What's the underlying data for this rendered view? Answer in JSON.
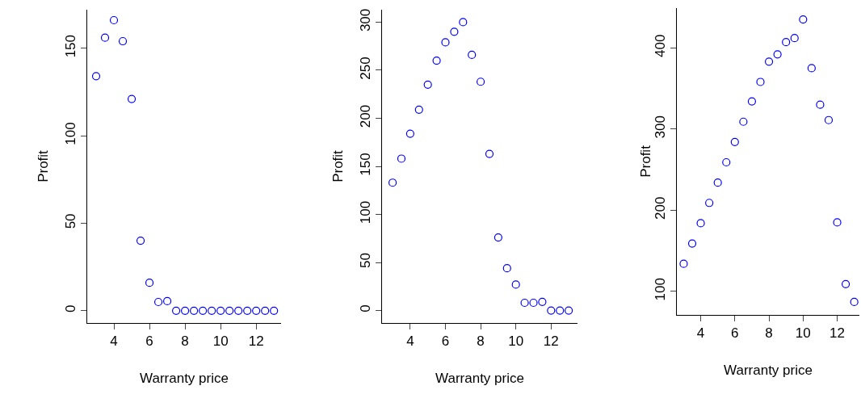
{
  "chart_data": [
    {
      "type": "scatter",
      "xlabel": "Warranty price",
      "ylabel": "Profit",
      "x": [
        3,
        3.5,
        4,
        4.5,
        5,
        5.5,
        6,
        6.5,
        7,
        7.5,
        8,
        8.5,
        9,
        9.5,
        10,
        10.5,
        11,
        11.5,
        12,
        12.5,
        13
      ],
      "values": [
        134,
        156,
        166,
        154,
        121,
        40,
        16,
        5,
        5.5,
        0,
        0,
        0,
        0,
        0,
        0,
        0,
        0,
        0,
        0,
        0,
        0
      ],
      "color": "#0000ff",
      "marker": "circle",
      "xlim": [
        2.5,
        13.4
      ],
      "ylim": [
        -7,
        172
      ],
      "xticks": [
        4,
        6,
        8,
        10,
        12
      ],
      "yticks": [
        0,
        50,
        100,
        150
      ],
      "grid": false
    },
    {
      "type": "scatter",
      "xlabel": "Warranty price",
      "ylabel": "Profit",
      "x": [
        3,
        3.5,
        4,
        4.5,
        5,
        5.5,
        6,
        6.5,
        7,
        7.5,
        8,
        8.5,
        9,
        9.5,
        10,
        10.5,
        11,
        11.5,
        12,
        12.5,
        13
      ],
      "values": [
        133,
        158,
        184,
        209,
        235,
        260,
        279,
        290,
        300,
        266,
        238,
        163,
        76,
        44,
        27,
        8,
        8,
        9,
        0,
        0,
        0
      ],
      "color": "#0000ff",
      "marker": "circle",
      "xlim": [
        2.4,
        13.5
      ],
      "ylim": [
        -13,
        313
      ],
      "xticks": [
        4,
        6,
        8,
        10,
        12
      ],
      "yticks": [
        0,
        50,
        100,
        150,
        200,
        250,
        300
      ],
      "grid": false
    },
    {
      "type": "scatter",
      "xlabel": "Warranty price",
      "ylabel": "Profit",
      "x": [
        3,
        3.5,
        4,
        4.5,
        5,
        5.5,
        6,
        6.5,
        7,
        7.5,
        8,
        8.5,
        9,
        9.5,
        10,
        10.5,
        11,
        11.5,
        12,
        12.5,
        13
      ],
      "values": [
        134,
        159,
        184,
        209,
        234,
        259,
        284,
        309,
        334,
        358,
        383,
        392,
        407,
        412,
        435,
        375,
        330,
        311,
        185,
        109,
        87
      ],
      "color": "#0000ff",
      "marker": "circle",
      "xlim": [
        2.6,
        13.3
      ],
      "ylim": [
        71,
        449
      ],
      "xticks": [
        4,
        6,
        8,
        10,
        12
      ],
      "yticks": [
        100,
        200,
        300,
        400
      ],
      "grid": false
    }
  ]
}
